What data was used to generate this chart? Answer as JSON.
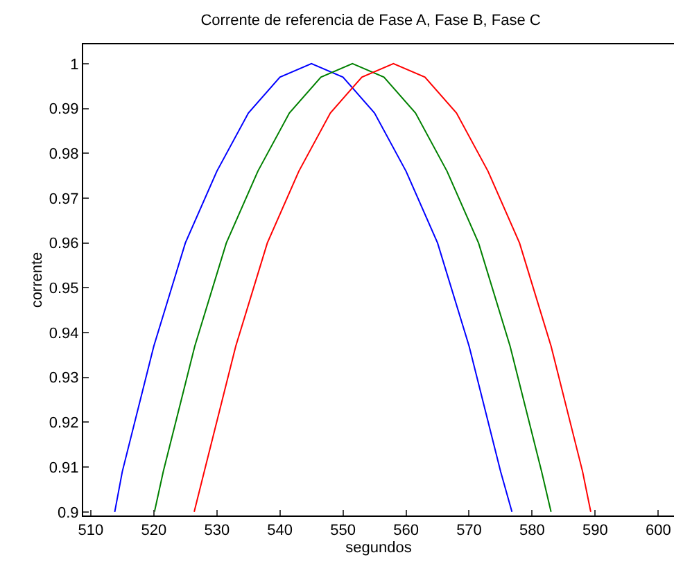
{
  "chart_data": {
    "type": "line",
    "title": "Corrente de referencia de Fase A, Fase B, Fase C",
    "xlabel": "segundos",
    "ylabel": "corrente",
    "series": [
      {
        "color": "#0000ff",
        "x": [
          513.8,
          515,
          520,
          525,
          530,
          535,
          540,
          545,
          550,
          555,
          560,
          565,
          570,
          575,
          576.8
        ],
        "values": [
          0.9,
          0.909,
          0.937,
          0.96,
          0.976,
          0.989,
          0.997,
          1.0,
          0.997,
          0.989,
          0.976,
          0.96,
          0.937,
          0.909,
          0.9
        ]
      },
      {
        "color": "#008000",
        "x": [
          520.1,
          521.5,
          526.5,
          531.5,
          536.5,
          541.5,
          546.5,
          551.5,
          556.5,
          561.5,
          566.5,
          571.5,
          576.5,
          581.5,
          583
        ],
        "values": [
          0.9,
          0.909,
          0.937,
          0.96,
          0.976,
          0.989,
          0.997,
          1.0,
          0.997,
          0.989,
          0.976,
          0.96,
          0.937,
          0.909,
          0.9
        ]
      },
      {
        "color": "#ff0000",
        "x": [
          526.4,
          528,
          533,
          538,
          543,
          548,
          553,
          558,
          563,
          568,
          573,
          578,
          583,
          588,
          589.3
        ],
        "values": [
          0.9,
          0.909,
          0.937,
          0.96,
          0.976,
          0.989,
          0.997,
          1.0,
          0.997,
          0.989,
          0.976,
          0.96,
          0.937,
          0.909,
          0.9
        ]
      }
    ],
    "xlim": [
      508.8,
      602.5
    ],
    "ylim": [
      0.8992,
      1.0043
    ],
    "xticks": [
      510,
      520,
      530,
      540,
      550,
      560,
      570,
      580,
      590,
      600
    ],
    "yticks": [
      0.9,
      0.91,
      0.92,
      0.93,
      0.94,
      0.95,
      0.96,
      0.97,
      0.98,
      0.99,
      1
    ],
    "grid": false,
    "marker": "none",
    "line_style": "solid"
  }
}
